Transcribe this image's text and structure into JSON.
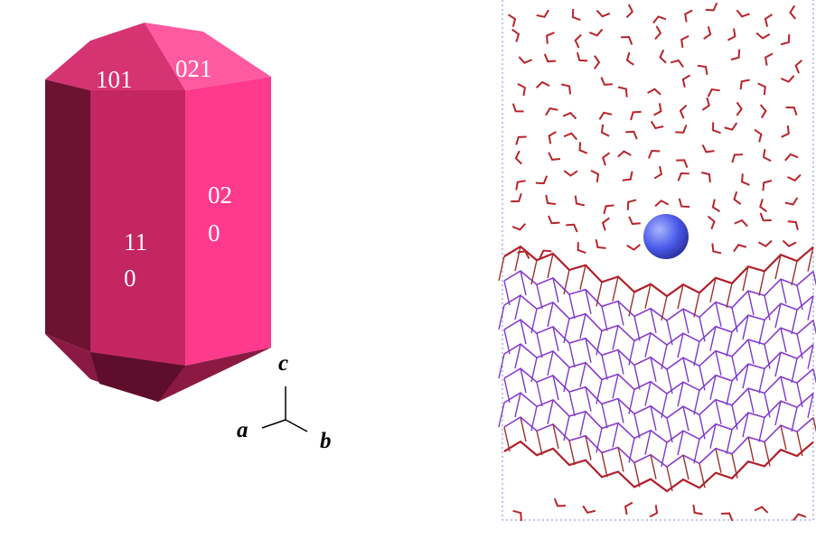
{
  "crystal": {
    "faces": [
      {
        "lines": [
          "101"
        ]
      },
      {
        "lines": [
          "021"
        ]
      },
      {
        "lines": [
          "02",
          "0"
        ]
      },
      {
        "lines": [
          "11",
          "0"
        ]
      }
    ],
    "axes": {
      "c": "c",
      "a": "a",
      "b": "b"
    }
  }
}
